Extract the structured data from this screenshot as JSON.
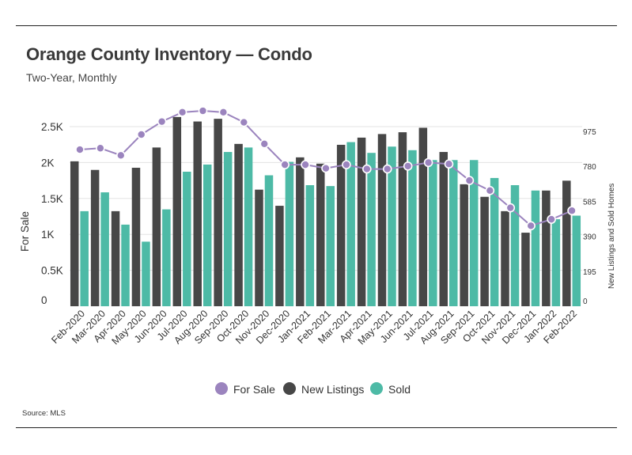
{
  "title": "Orange County Inventory — Condo",
  "subtitle": "Two-Year, Monthly",
  "source": "Source:  MLS",
  "colors": {
    "for_sale": "#9b84be",
    "new_listings": "#474747",
    "sold": "#4dbaa6"
  },
  "chart_data": {
    "type": "bar",
    "title": "Orange County Inventory — Condo",
    "subtitle": "Two-Year, Monthly",
    "categories": [
      "Feb-2020",
      "Mar-2020",
      "Apr-2020",
      "May-2020",
      "Jun-2020",
      "Jul-2020",
      "Aug-2020",
      "Sep-2020",
      "Oct-2020",
      "Nov-2020",
      "Dec-2020",
      "Jan-2021",
      "Feb-2021",
      "Mar-2021",
      "Apr-2021",
      "May-2021",
      "Jun-2021",
      "Jul-2021",
      "Aug-2021",
      "Sep-2021",
      "Oct-2021",
      "Nov-2021",
      "Dec-2021",
      "Jan-2022",
      "Feb-2022"
    ],
    "ylabel": "For Sale",
    "y2label": "New Listings and Sold Homes",
    "ylim": [
      0,
      2600
    ],
    "y2lim": [
      0,
      1014
    ],
    "yticks": [
      0,
      500,
      1000,
      1500,
      2000,
      2500
    ],
    "ytick_labels": [
      "0",
      "0.5K",
      "1K",
      "1.5K",
      "2K",
      "2.5K"
    ],
    "y2ticks": [
      0,
      195,
      390,
      585,
      780,
      975
    ],
    "y2tick_labels": [
      "0",
      "195",
      "390",
      "585",
      "780",
      "975"
    ],
    "series": [
      {
        "name": "For Sale",
        "type": "line",
        "axis": "left",
        "values": [
          2180,
          2200,
          2100,
          2390,
          2570,
          2700,
          2720,
          2700,
          2560,
          2260,
          1970,
          1970,
          1920,
          1970,
          1910,
          1910,
          1950,
          2000,
          1980,
          1750,
          1610,
          1370,
          1120,
          1210,
          1330
        ]
      },
      {
        "name": "New Listings",
        "type": "bar",
        "axis": "right",
        "values": [
          808,
          760,
          530,
          772,
          885,
          1055,
          1030,
          1045,
          905,
          650,
          560,
          830,
          795,
          900,
          940,
          960,
          970,
          995,
          860,
          680,
          610,
          530,
          410,
          645,
          700
        ]
      },
      {
        "name": "Sold",
        "type": "bar",
        "axis": "right",
        "values": [
          530,
          635,
          455,
          360,
          540,
          750,
          790,
          860,
          885,
          730,
          805,
          675,
          670,
          915,
          855,
          890,
          870,
          815,
          815,
          815,
          715,
          675,
          645,
          485,
          505
        ]
      }
    ],
    "legend": {
      "position": "bottom-center",
      "entries": [
        "For Sale",
        "New Listings",
        "Sold"
      ]
    },
    "grid": true
  }
}
